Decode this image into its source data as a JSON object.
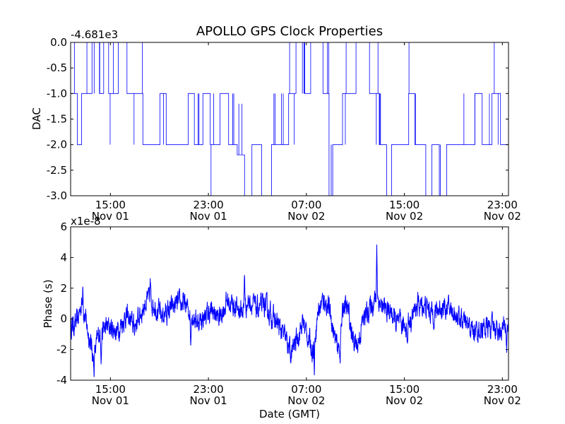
{
  "figure": {
    "title": "APOLLO GPS Clock Properties",
    "xlabel": "Date (GMT)"
  },
  "chart_data": [
    {
      "type": "line",
      "name": "dac-panel",
      "ylabel": "DAC",
      "offset_label": "-4.681e3",
      "ylim": [
        -3.0,
        0.0
      ],
      "yticks": [
        0.0,
        -0.5,
        -1.0,
        -1.5,
        -2.0,
        -2.5,
        -3.0
      ],
      "ytick_labels": [
        "0.0",
        "-0.5",
        "-1.0",
        "-1.5",
        "-2.0",
        "-2.5",
        "-3.0"
      ],
      "xlim": [
        "Nov 01 11:45",
        "Nov 02 23:30"
      ],
      "xticks": [
        {
          "line1": "15:00",
          "line2": "Nov 01",
          "t": 3.25
        },
        {
          "line1": "23:00",
          "line2": "Nov 01",
          "t": 11.25
        },
        {
          "line1": "07:00",
          "line2": "Nov 02",
          "t": 19.25
        },
        {
          "line1": "15:00",
          "line2": "Nov 02",
          "t": 27.25
        },
        {
          "line1": "23:00",
          "line2": "Nov 02",
          "t": 35.25
        }
      ],
      "t_range_hours": [
        0,
        35.75
      ],
      "line_color": "#0000ff",
      "segments": [
        [
          0.0,
          0.55,
          -1.0
        ],
        [
          0.55,
          0.9,
          -2.0
        ],
        [
          0.9,
          1.75,
          -1.0
        ],
        [
          1.75,
          2.35,
          0.0
        ],
        [
          2.35,
          2.7,
          -1.0
        ],
        [
          2.7,
          3.1,
          0.0
        ],
        [
          3.1,
          3.9,
          -1.0
        ],
        [
          3.9,
          4.6,
          0.0
        ],
        [
          4.6,
          5.9,
          -1.0
        ],
        [
          5.9,
          7.3,
          -2.0
        ],
        [
          7.3,
          7.8,
          -1.0
        ],
        [
          7.8,
          9.6,
          -2.0
        ],
        [
          9.6,
          10.1,
          -1.0
        ],
        [
          10.1,
          10.8,
          -2.0
        ],
        [
          10.8,
          11.4,
          -1.0
        ],
        [
          11.4,
          12.2,
          -2.0
        ],
        [
          12.2,
          12.9,
          -1.0
        ],
        [
          12.9,
          13.6,
          -2.0
        ],
        [
          13.6,
          14.2,
          -2.2
        ],
        [
          14.2,
          14.8,
          -3.0
        ],
        [
          14.8,
          15.6,
          -2.0
        ],
        [
          15.6,
          16.4,
          -3.0
        ],
        [
          16.4,
          17.0,
          -2.0
        ],
        [
          17.0,
          17.8,
          -2.0
        ],
        [
          17.8,
          18.4,
          -1.0
        ],
        [
          18.4,
          19.1,
          0.0
        ],
        [
          19.1,
          19.6,
          -1.0
        ],
        [
          19.6,
          20.6,
          0.0
        ],
        [
          20.6,
          21.1,
          -1.0
        ],
        [
          21.1,
          21.4,
          -3.0
        ],
        [
          21.4,
          22.2,
          -2.0
        ],
        [
          22.2,
          22.7,
          -1.0
        ],
        [
          22.7,
          23.3,
          -1.0
        ],
        [
          23.3,
          24.4,
          0.0
        ],
        [
          24.4,
          25.2,
          -1.0
        ],
        [
          25.2,
          25.8,
          -2.0
        ],
        [
          25.8,
          26.2,
          -3.0
        ],
        [
          26.2,
          27.6,
          -2.0
        ],
        [
          27.6,
          28.1,
          -1.0
        ],
        [
          28.1,
          29.0,
          -2.0
        ],
        [
          29.0,
          29.5,
          -3.0
        ],
        [
          29.5,
          30.1,
          -2.0
        ],
        [
          30.1,
          30.7,
          -3.0
        ],
        [
          30.7,
          32.0,
          -2.0
        ],
        [
          32.0,
          33.0,
          -2.0
        ],
        [
          33.0,
          33.6,
          -1.0
        ],
        [
          33.6,
          34.4,
          -2.0
        ],
        [
          34.4,
          35.1,
          -1.0
        ],
        [
          35.1,
          35.75,
          -2.0
        ]
      ]
    },
    {
      "type": "line",
      "name": "phase-panel",
      "ylabel": "Phase (s)",
      "offset_label": "x1e-8",
      "ylim": [
        -4,
        6
      ],
      "yticks": [
        -4,
        -2,
        0,
        2,
        4,
        6
      ],
      "ytick_labels": [
        "-4",
        "-2",
        "0",
        "2",
        "4",
        "6"
      ],
      "xticks": [
        {
          "line1": "15:00",
          "line2": "Nov 01",
          "t": 3.25
        },
        {
          "line1": "23:00",
          "line2": "Nov 01",
          "t": 11.25
        },
        {
          "line1": "07:00",
          "line2": "Nov 02",
          "t": 19.25
        },
        {
          "line1": "15:00",
          "line2": "Nov 02",
          "t": 27.25
        },
        {
          "line1": "23:00",
          "line2": "Nov 02",
          "t": 35.25
        }
      ],
      "t_range_hours": [
        0,
        35.75
      ],
      "line_color": "#0000ff",
      "trend": [
        [
          0.0,
          -0.5
        ],
        [
          0.5,
          -0.3
        ],
        [
          0.9,
          1.0
        ],
        [
          1.2,
          0.0
        ],
        [
          1.6,
          -1.5
        ],
        [
          1.9,
          -2.5
        ],
        [
          2.3,
          -1.0
        ],
        [
          3.0,
          -0.5
        ],
        [
          3.8,
          -0.8
        ],
        [
          4.5,
          0.2
        ],
        [
          5.2,
          -0.5
        ],
        [
          5.8,
          0.5
        ],
        [
          6.3,
          1.3
        ],
        [
          6.8,
          1.0
        ],
        [
          7.4,
          0.2
        ],
        [
          8.0,
          0.5
        ],
        [
          8.6,
          0.9
        ],
        [
          9.2,
          1.0
        ],
        [
          9.8,
          0.4
        ],
        [
          10.4,
          -0.2
        ],
        [
          11.0,
          0.2
        ],
        [
          11.6,
          0.5
        ],
        [
          12.1,
          0.0
        ],
        [
          12.8,
          1.2
        ],
        [
          13.4,
          0.8
        ],
        [
          14.0,
          0.5
        ],
        [
          14.6,
          1.2
        ],
        [
          15.2,
          0.6
        ],
        [
          15.8,
          0.9
        ],
        [
          16.4,
          0.2
        ],
        [
          17.0,
          -0.5
        ],
        [
          17.6,
          -1.4
        ],
        [
          18.0,
          -2.3
        ],
        [
          18.5,
          -1.2
        ],
        [
          19.0,
          -0.2
        ],
        [
          19.5,
          -1.5
        ],
        [
          19.8,
          -2.0
        ],
        [
          20.2,
          0.5
        ],
        [
          20.7,
          1.3
        ],
        [
          21.2,
          0.4
        ],
        [
          21.6,
          -1.5
        ],
        [
          21.9,
          -2.0
        ],
        [
          22.3,
          1.0
        ],
        [
          22.7,
          0.4
        ],
        [
          23.0,
          -1.2
        ],
        [
          23.4,
          -1.8
        ],
        [
          23.9,
          0.0
        ],
        [
          24.5,
          0.8
        ],
        [
          25.0,
          1.5
        ],
        [
          25.5,
          0.6
        ],
        [
          26.1,
          0.5
        ],
        [
          26.6,
          -0.3
        ],
        [
          27.2,
          -0.5
        ],
        [
          27.8,
          0.0
        ],
        [
          28.3,
          0.9
        ],
        [
          29.0,
          0.8
        ],
        [
          29.6,
          0.3
        ],
        [
          30.3,
          0.8
        ],
        [
          31.0,
          0.6
        ],
        [
          31.6,
          0.2
        ],
        [
          32.2,
          -0.4
        ],
        [
          33.0,
          -0.8
        ],
        [
          33.8,
          -0.6
        ],
        [
          34.6,
          -0.5
        ],
        [
          35.2,
          -0.8
        ],
        [
          35.75,
          -0.3
        ]
      ],
      "spikes": [
        [
          1.0,
          2.8
        ],
        [
          1.9,
          -3.6
        ],
        [
          2.5,
          -2.5
        ],
        [
          6.5,
          2.5
        ],
        [
          9.8,
          -1.8
        ],
        [
          14.2,
          3.2
        ],
        [
          18.0,
          -2.6
        ],
        [
          19.9,
          -3.4
        ],
        [
          22.0,
          -2.4
        ],
        [
          25.0,
          5.2
        ],
        [
          27.5,
          -2.0
        ],
        [
          35.6,
          -2.0
        ]
      ],
      "noise_amplitude": 0.55
    }
  ]
}
